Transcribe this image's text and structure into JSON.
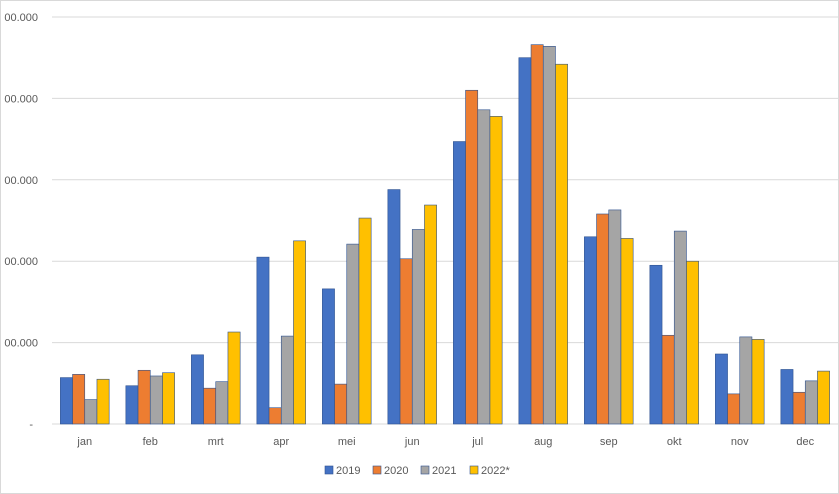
{
  "chart_data": {
    "type": "bar",
    "title": "",
    "xlabel": "",
    "ylabel": "",
    "categories": [
      "jan",
      "feb",
      "mrt",
      "apr",
      "mei",
      "jun",
      "jul",
      "aug",
      "sep",
      "okt",
      "nov",
      "dec"
    ],
    "y_tick_labels": [
      "-",
      "00.000",
      "00.000",
      "00.000",
      "00.000",
      "00.000"
    ],
    "ylim": [
      0,
      5
    ],
    "grid": true,
    "legend_position": "bottom",
    "series": [
      {
        "name": "2019",
        "color": "#4472c4",
        "values": [
          0.57,
          0.47,
          0.85,
          2.05,
          1.66,
          2.88,
          3.47,
          4.5,
          2.3,
          1.95,
          0.86,
          0.67
        ]
      },
      {
        "name": "2020",
        "color": "#ed7d31",
        "values": [
          0.61,
          0.66,
          0.44,
          0.2,
          0.49,
          2.03,
          4.1,
          4.66,
          2.58,
          1.09,
          0.37,
          0.39
        ]
      },
      {
        "name": "2021",
        "color": "#a5a5a5",
        "values": [
          0.3,
          0.59,
          0.52,
          1.08,
          2.21,
          2.39,
          3.86,
          4.64,
          2.63,
          2.37,
          1.07,
          0.53
        ]
      },
      {
        "name": "2022*",
        "color": "#ffc000",
        "values": [
          0.55,
          0.63,
          1.13,
          2.25,
          2.53,
          2.69,
          3.78,
          4.42,
          2.28,
          2.0,
          1.04,
          0.65
        ]
      }
    ]
  }
}
